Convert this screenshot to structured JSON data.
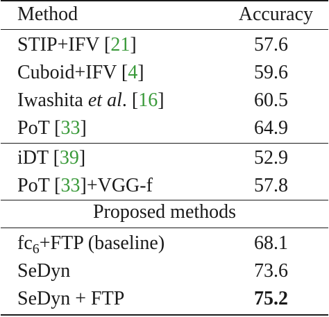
{
  "header": {
    "method": "Method",
    "accuracy": "Accuracy"
  },
  "group1": [
    {
      "name_pre": "STIP+IFV [",
      "ref": "21",
      "name_post": "]",
      "accuracy": "57.6"
    },
    {
      "name_pre": "Cuboid+IFV [",
      "ref": "4",
      "name_post": "]",
      "accuracy": "59.6"
    },
    {
      "name_pre": "Iwashita ",
      "name_italic": "et al",
      "name_mid": ". [",
      "ref": "16",
      "name_post": "]",
      "accuracy": "60.5"
    },
    {
      "name_pre": "PoT [",
      "ref": "33",
      "name_post": "]",
      "accuracy": "64.9"
    }
  ],
  "group2": [
    {
      "name_pre": "iDT [",
      "ref": "39",
      "name_post": "]",
      "accuracy": "52.9"
    },
    {
      "name_pre": "PoT [",
      "ref": "33",
      "name_post": "]+VGG-f",
      "accuracy": "57.8"
    }
  ],
  "section_label": "Proposed methods",
  "group3": [
    {
      "name_pre": "fc",
      "sub": "6",
      "name_post": "+FTP (baseline)",
      "accuracy": "68.1"
    },
    {
      "name_pre": "SeDyn",
      "accuracy": "73.6"
    },
    {
      "name_pre": "SeDyn + FTP",
      "accuracy": "75.2"
    }
  ],
  "colors": {
    "reference": "#3a9a3a",
    "text": "#1a1a1a"
  }
}
